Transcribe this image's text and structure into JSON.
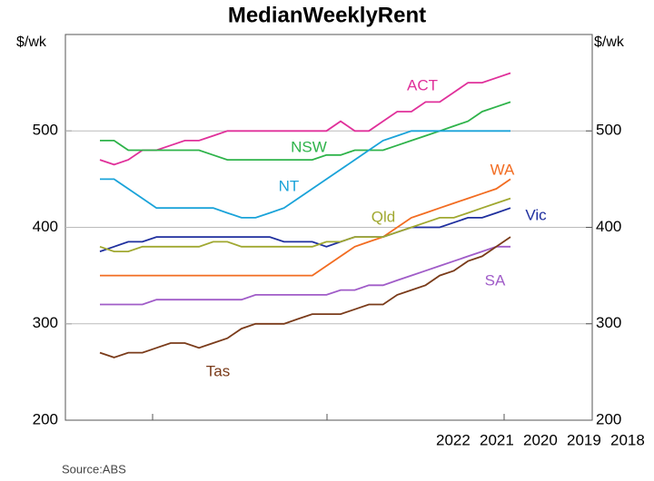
{
  "chart_data": {
    "type": "line",
    "title": "MedianWeeklyRent",
    "ylabel": "$/wk",
    "y2label": "$/wk",
    "ylim": [
      200,
      600
    ],
    "yticks": [
      200,
      300,
      400,
      500
    ],
    "y2lim": [
      200,
      600
    ],
    "y2ticks": [
      200,
      300,
      400,
      500
    ],
    "grid": true,
    "x_tick_labels": [
      "2022",
      "2021",
      "2020",
      "2019",
      "2018"
    ],
    "source": "Source:ABS",
    "series": [
      {
        "name": "ACT",
        "color": "#e0309a",
        "values": [
          470,
          465,
          470,
          480,
          480,
          485,
          490,
          490,
          495,
          500,
          500,
          500,
          500,
          500,
          500,
          500,
          500,
          510,
          500,
          500,
          510,
          520,
          520,
          530,
          530,
          540,
          550,
          550,
          555,
          560
        ]
      },
      {
        "name": "NSW",
        "color": "#2eb34a",
        "values": [
          490,
          490,
          480,
          480,
          480,
          480,
          480,
          480,
          475,
          470,
          470,
          470,
          470,
          470,
          470,
          470,
          475,
          475,
          480,
          480,
          480,
          485,
          490,
          495,
          500,
          505,
          510,
          520,
          525,
          530
        ]
      },
      {
        "name": "NT",
        "color": "#1aa3d9",
        "values": [
          450,
          450,
          440,
          430,
          420,
          420,
          420,
          420,
          420,
          415,
          410,
          410,
          415,
          420,
          430,
          440,
          450,
          460,
          470,
          480,
          490,
          495,
          500,
          500,
          500,
          500,
          500,
          500,
          500,
          500
        ]
      },
      {
        "name": "WA",
        "color": "#f26c21",
        "values": [
          350,
          350,
          350,
          350,
          350,
          350,
          350,
          350,
          350,
          350,
          350,
          350,
          350,
          350,
          350,
          350,
          360,
          370,
          380,
          385,
          390,
          400,
          410,
          415,
          420,
          425,
          430,
          435,
          440,
          450
        ]
      },
      {
        "name": "Vic",
        "color": "#1f2f9e",
        "values": [
          375,
          380,
          385,
          385,
          390,
          390,
          390,
          390,
          390,
          390,
          390,
          390,
          390,
          385,
          385,
          385,
          380,
          385,
          390,
          390,
          390,
          395,
          400,
          400,
          400,
          405,
          410,
          410,
          415,
          420
        ]
      },
      {
        "name": "Qld",
        "color": "#a0a830",
        "values": [
          380,
          375,
          375,
          380,
          380,
          380,
          380,
          380,
          385,
          385,
          380,
          380,
          380,
          380,
          380,
          380,
          385,
          385,
          390,
          390,
          390,
          395,
          400,
          405,
          410,
          410,
          415,
          420,
          425,
          430
        ]
      },
      {
        "name": "SA",
        "color": "#a05cc8",
        "values": [
          320,
          320,
          320,
          320,
          325,
          325,
          325,
          325,
          325,
          325,
          325,
          330,
          330,
          330,
          330,
          330,
          330,
          335,
          335,
          340,
          340,
          345,
          350,
          355,
          360,
          365,
          370,
          375,
          380,
          380
        ]
      },
      {
        "name": "Tas",
        "color": "#7a3b1a",
        "values": [
          270,
          265,
          270,
          270,
          275,
          280,
          280,
          275,
          280,
          285,
          295,
          300,
          300,
          300,
          305,
          310,
          310,
          310,
          315,
          320,
          320,
          330,
          335,
          340,
          350,
          355,
          365,
          370,
          380,
          390
        ]
      }
    ]
  }
}
